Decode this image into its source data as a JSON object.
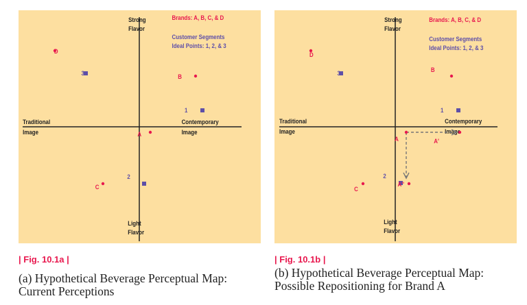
{
  "panel_a": {
    "axis_top": [
      "Strong",
      "Flavor"
    ],
    "axis_bottom": [
      "Light",
      "Flavor"
    ],
    "axis_left": [
      "Traditional",
      "Image"
    ],
    "axis_right": [
      "Contemporary",
      "Image"
    ],
    "legend_brands": "Brands: A, B, C, & D",
    "legend_segments": [
      "Customer Segments",
      "Ideal Points: 1, 2, & 3"
    ],
    "brands": [
      "A",
      "B",
      "C",
      "D"
    ],
    "segments": [
      "1",
      "2",
      "3"
    ],
    "fig_label": "| Fig.  10.1a |",
    "caption": "(a) Hypothetical Beverage Perceptual Map: Current Perceptions"
  },
  "panel_b": {
    "axis_top": [
      "Strong",
      "Flavor"
    ],
    "axis_bottom": [
      "Light",
      "Flavor"
    ],
    "axis_left": [
      "Traditional",
      "Image"
    ],
    "axis_right": [
      "Contemporary",
      "Image"
    ],
    "legend_brands": "Brands: A, B, C, & D",
    "legend_segments": [
      "Customer Segments",
      "Ideal Points: 1, 2, & 3"
    ],
    "brands": [
      "A",
      "B",
      "C",
      "D"
    ],
    "segments": [
      "1",
      "2",
      "3"
    ],
    "repositioned": [
      "A'",
      "A''"
    ],
    "fig_label": "| Fig.  10.1b |",
    "caption": "(b) Hypothetical Beverage Perceptual Map: Possible Repositioning for Brand A"
  },
  "colors": {
    "background": "#fddfa0",
    "brand": "#e8184e",
    "segment": "#5e4fa8",
    "axis": "#222222",
    "arrow": "#777777"
  }
}
